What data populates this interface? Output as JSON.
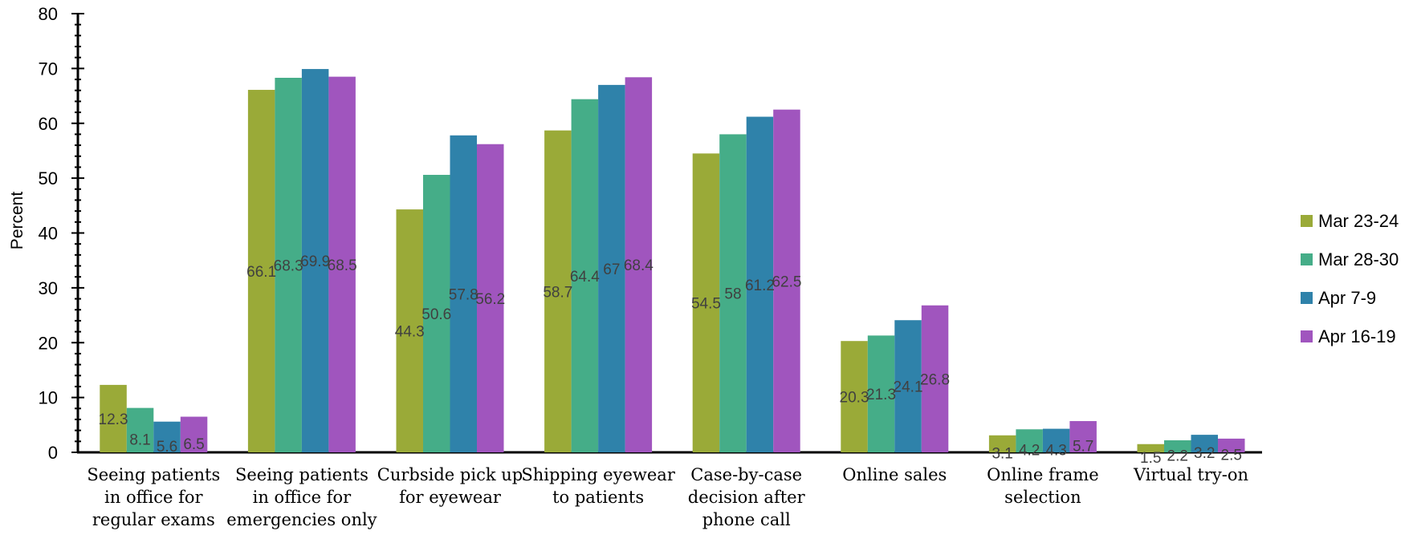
{
  "chart_data": {
    "type": "bar",
    "title": "",
    "xlabel": "",
    "ylabel": "Percent",
    "ylim": [
      0,
      80
    ],
    "yticks": [
      0,
      10,
      20,
      30,
      40,
      50,
      60,
      70,
      80
    ],
    "grid": false,
    "legend_position": "right",
    "categories": [
      "Seeing patients in office for regular exams",
      "Seeing patients in office for emergencies only",
      "Curbside pick up for eyewear",
      "Shipping eyewear to patients",
      "Case-by-case decision after phone call",
      "Online sales",
      "Online frame selection",
      "Virtual try-on"
    ],
    "series": [
      {
        "name": "Mar 23-24",
        "color": "#9aaa38",
        "values": [
          12.3,
          66.1,
          44.3,
          58.7,
          54.5,
          20.3,
          3.1,
          1.5
        ]
      },
      {
        "name": "Mar 28-30",
        "color": "#45ad88",
        "values": [
          8.1,
          68.3,
          50.6,
          64.4,
          58,
          21.3,
          4.2,
          2.2
        ]
      },
      {
        "name": "Apr 7-9",
        "color": "#2f82aa",
        "values": [
          5.6,
          69.9,
          57.8,
          67,
          61.2,
          24.1,
          4.3,
          3.2
        ]
      },
      {
        "name": "Apr 16-19",
        "color": "#a055be",
        "values": [
          6.5,
          68.5,
          56.2,
          68.4,
          62.5,
          26.8,
          5.7,
          2.5
        ]
      }
    ]
  }
}
